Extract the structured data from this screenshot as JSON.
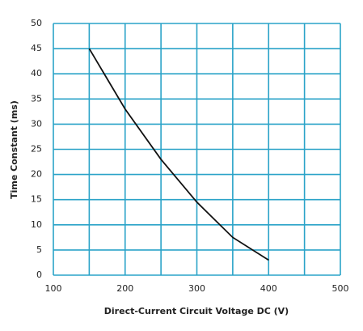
{
  "chart_data": {
    "type": "line",
    "x_label": "Direct-Current  Circuit Voltage DC (V)",
    "y_label": "Time Constant (ms)",
    "x": [
      150,
      200,
      250,
      300,
      350,
      400
    ],
    "series": [
      {
        "color": "#111111",
        "values": [
          45,
          33,
          23,
          14.5,
          7.5,
          3
        ]
      }
    ],
    "xlim": [
      100,
      500
    ],
    "xticks": [
      100,
      200,
      300,
      400,
      500
    ],
    "x_minor_grid": [
      150,
      250,
      350,
      450
    ],
    "ylim": [
      0,
      50
    ],
    "yticks": [
      0,
      5,
      10,
      15,
      20,
      25,
      30,
      35,
      40,
      45,
      50
    ],
    "grid": true,
    "grid_color": "#2aa3c8"
  }
}
